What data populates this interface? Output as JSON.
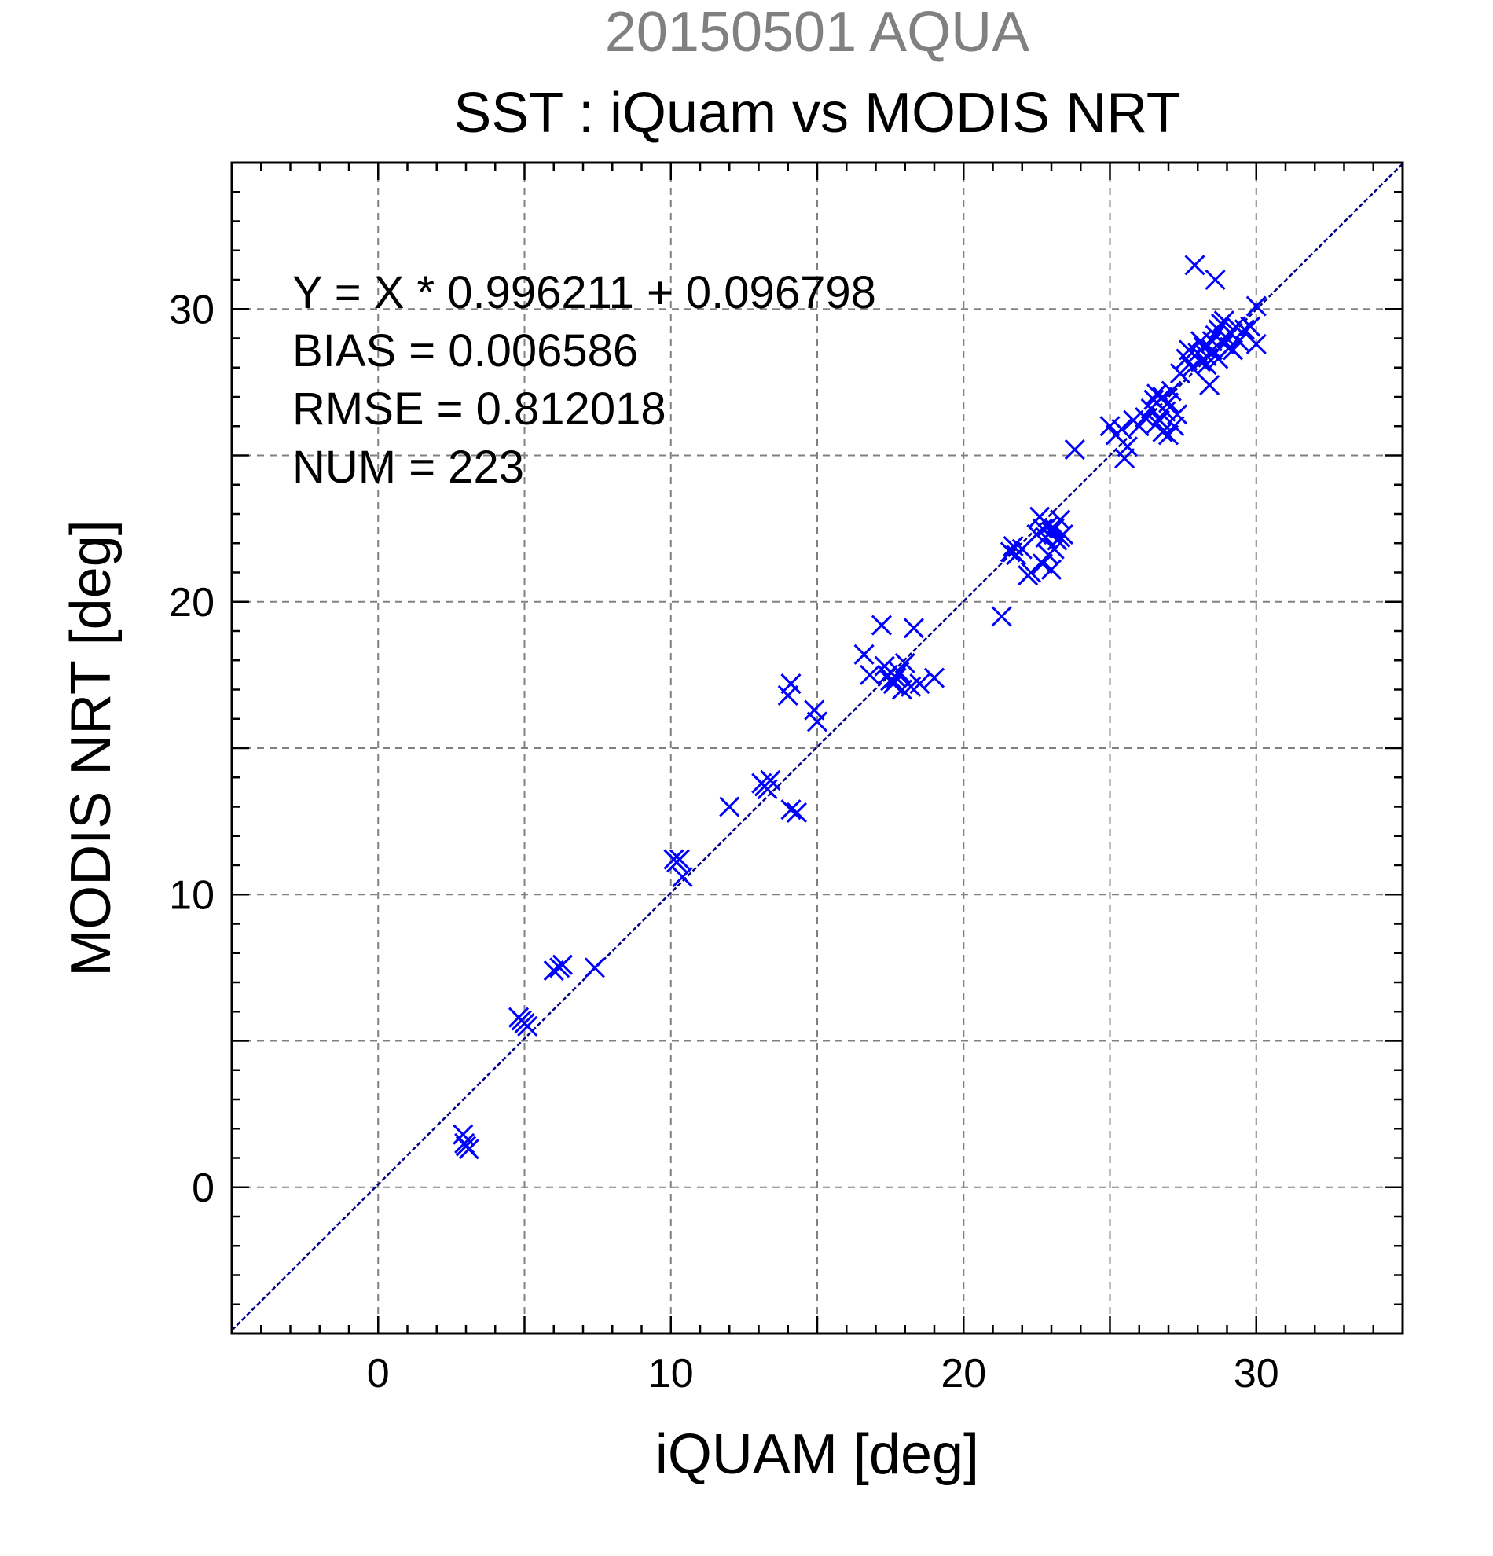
{
  "chart_data": {
    "type": "scatter",
    "supertitle": "20150501 AQUA",
    "title": "SST : iQuam vs MODIS NRT",
    "xlabel": "iQUAM [deg]",
    "ylabel": "MODIS NRT [deg]",
    "xlim": [
      -5,
      35
    ],
    "ylim": [
      -5,
      35
    ],
    "xticks": [
      0,
      10,
      20,
      30
    ],
    "yticks": [
      0,
      10,
      20,
      30
    ],
    "tick_labels": {
      "x": [
        "0",
        "10",
        "20",
        "30"
      ],
      "y": [
        "0",
        "10",
        "20",
        "30"
      ]
    },
    "grid": true,
    "marker": "x",
    "color": "#0000ff",
    "stats": {
      "equation": "Y = X * 0.996211 + 0.096798",
      "bias": "BIAS = 0.006586",
      "rmse": "RMSE = 0.812018",
      "num": "NUM = 223"
    },
    "fit_line": {
      "slope": 0.996211,
      "intercept": 0.096798
    },
    "points": [
      [
        2.9,
        1.8
      ],
      [
        3.0,
        1.4
      ],
      [
        3.1,
        1.3
      ],
      [
        2.95,
        1.5
      ],
      [
        4.8,
        5.8
      ],
      [
        5.0,
        5.6
      ],
      [
        5.1,
        5.5
      ],
      [
        4.9,
        5.7
      ],
      [
        6.0,
        7.4
      ],
      [
        6.3,
        7.6
      ],
      [
        6.2,
        7.5
      ],
      [
        7.4,
        7.5
      ],
      [
        10.1,
        11.2
      ],
      [
        10.2,
        11.1
      ],
      [
        10.3,
        11.2
      ],
      [
        10.4,
        10.6
      ],
      [
        12.0,
        13.0
      ],
      [
        13.1,
        13.8
      ],
      [
        13.3,
        13.6
      ],
      [
        13.4,
        13.9
      ],
      [
        13.2,
        13.7
      ],
      [
        14.1,
        12.9
      ],
      [
        14.3,
        12.8
      ],
      [
        14.0,
        16.8
      ],
      [
        14.1,
        17.2
      ],
      [
        14.9,
        16.3
      ],
      [
        15.0,
        15.9
      ],
      [
        16.6,
        18.2
      ],
      [
        17.2,
        19.2
      ],
      [
        18.3,
        19.1
      ],
      [
        16.8,
        17.5
      ],
      [
        17.3,
        17.8
      ],
      [
        17.5,
        17.3
      ],
      [
        17.6,
        17.2
      ],
      [
        17.8,
        17.6
      ],
      [
        17.9,
        17.0
      ],
      [
        18.0,
        17.9
      ],
      [
        18.2,
        17.1
      ],
      [
        18.5,
        17.2
      ],
      [
        19.0,
        17.4
      ],
      [
        17.4,
        17.5
      ],
      [
        17.7,
        17.4
      ],
      [
        21.3,
        19.5
      ],
      [
        21.6,
        21.7
      ],
      [
        21.7,
        21.9
      ],
      [
        21.8,
        21.6
      ],
      [
        22.0,
        21.8
      ],
      [
        22.2,
        20.9
      ],
      [
        22.3,
        21.0
      ],
      [
        22.5,
        22.3
      ],
      [
        22.7,
        22.5
      ],
      [
        22.8,
        22.2
      ],
      [
        22.9,
        22.6
      ],
      [
        23.0,
        22.4
      ],
      [
        23.1,
        21.8
      ],
      [
        23.2,
        22.1
      ],
      [
        23.3,
        22.8
      ],
      [
        23.4,
        22.3
      ],
      [
        22.7,
        21.3
      ],
      [
        22.9,
        21.6
      ],
      [
        23.0,
        21.1
      ],
      [
        22.6,
        22.9
      ],
      [
        23.1,
        22.5
      ],
      [
        23.3,
        22.2
      ],
      [
        23.8,
        25.2
      ],
      [
        25.0,
        26.0
      ],
      [
        25.2,
        25.7
      ],
      [
        25.4,
        25.9
      ],
      [
        25.5,
        24.9
      ],
      [
        25.6,
        25.3
      ],
      [
        25.8,
        26.2
      ],
      [
        26.0,
        26.0
      ],
      [
        26.2,
        26.3
      ],
      [
        26.4,
        26.6
      ],
      [
        26.5,
        26.9
      ],
      [
        26.6,
        27.1
      ],
      [
        26.7,
        26.2
      ],
      [
        26.8,
        25.8
      ],
      [
        26.9,
        26.5
      ],
      [
        27.0,
        26.8
      ],
      [
        27.1,
        27.2
      ],
      [
        27.2,
        26.0
      ],
      [
        27.3,
        26.4
      ],
      [
        26.6,
        26.1
      ],
      [
        26.8,
        27.0
      ],
      [
        27.0,
        25.7
      ],
      [
        27.4,
        27.8
      ],
      [
        27.6,
        28.3
      ],
      [
        27.8,
        28.0
      ],
      [
        27.9,
        31.5
      ],
      [
        28.6,
        31.0
      ],
      [
        28.0,
        28.5
      ],
      [
        28.1,
        28.2
      ],
      [
        28.2,
        28.7
      ],
      [
        28.3,
        28.4
      ],
      [
        28.4,
        27.4
      ],
      [
        28.5,
        28.9
      ],
      [
        28.6,
        29.1
      ],
      [
        28.7,
        29.3
      ],
      [
        28.8,
        29.5
      ],
      [
        28.9,
        28.8
      ],
      [
        29.0,
        29.0
      ],
      [
        29.1,
        29.2
      ],
      [
        29.2,
        28.6
      ],
      [
        29.3,
        29.4
      ],
      [
        29.4,
        28.9
      ],
      [
        29.6,
        29.3
      ],
      [
        29.8,
        29.4
      ],
      [
        30.0,
        30.1
      ],
      [
        30.0,
        28.8
      ],
      [
        28.3,
        28.1
      ],
      [
        28.5,
        28.6
      ],
      [
        28.7,
        28.3
      ],
      [
        27.7,
        28.6
      ],
      [
        28.1,
        28.9
      ],
      [
        28.9,
        29.6
      ],
      [
        29.1,
        28.7
      ]
    ]
  }
}
